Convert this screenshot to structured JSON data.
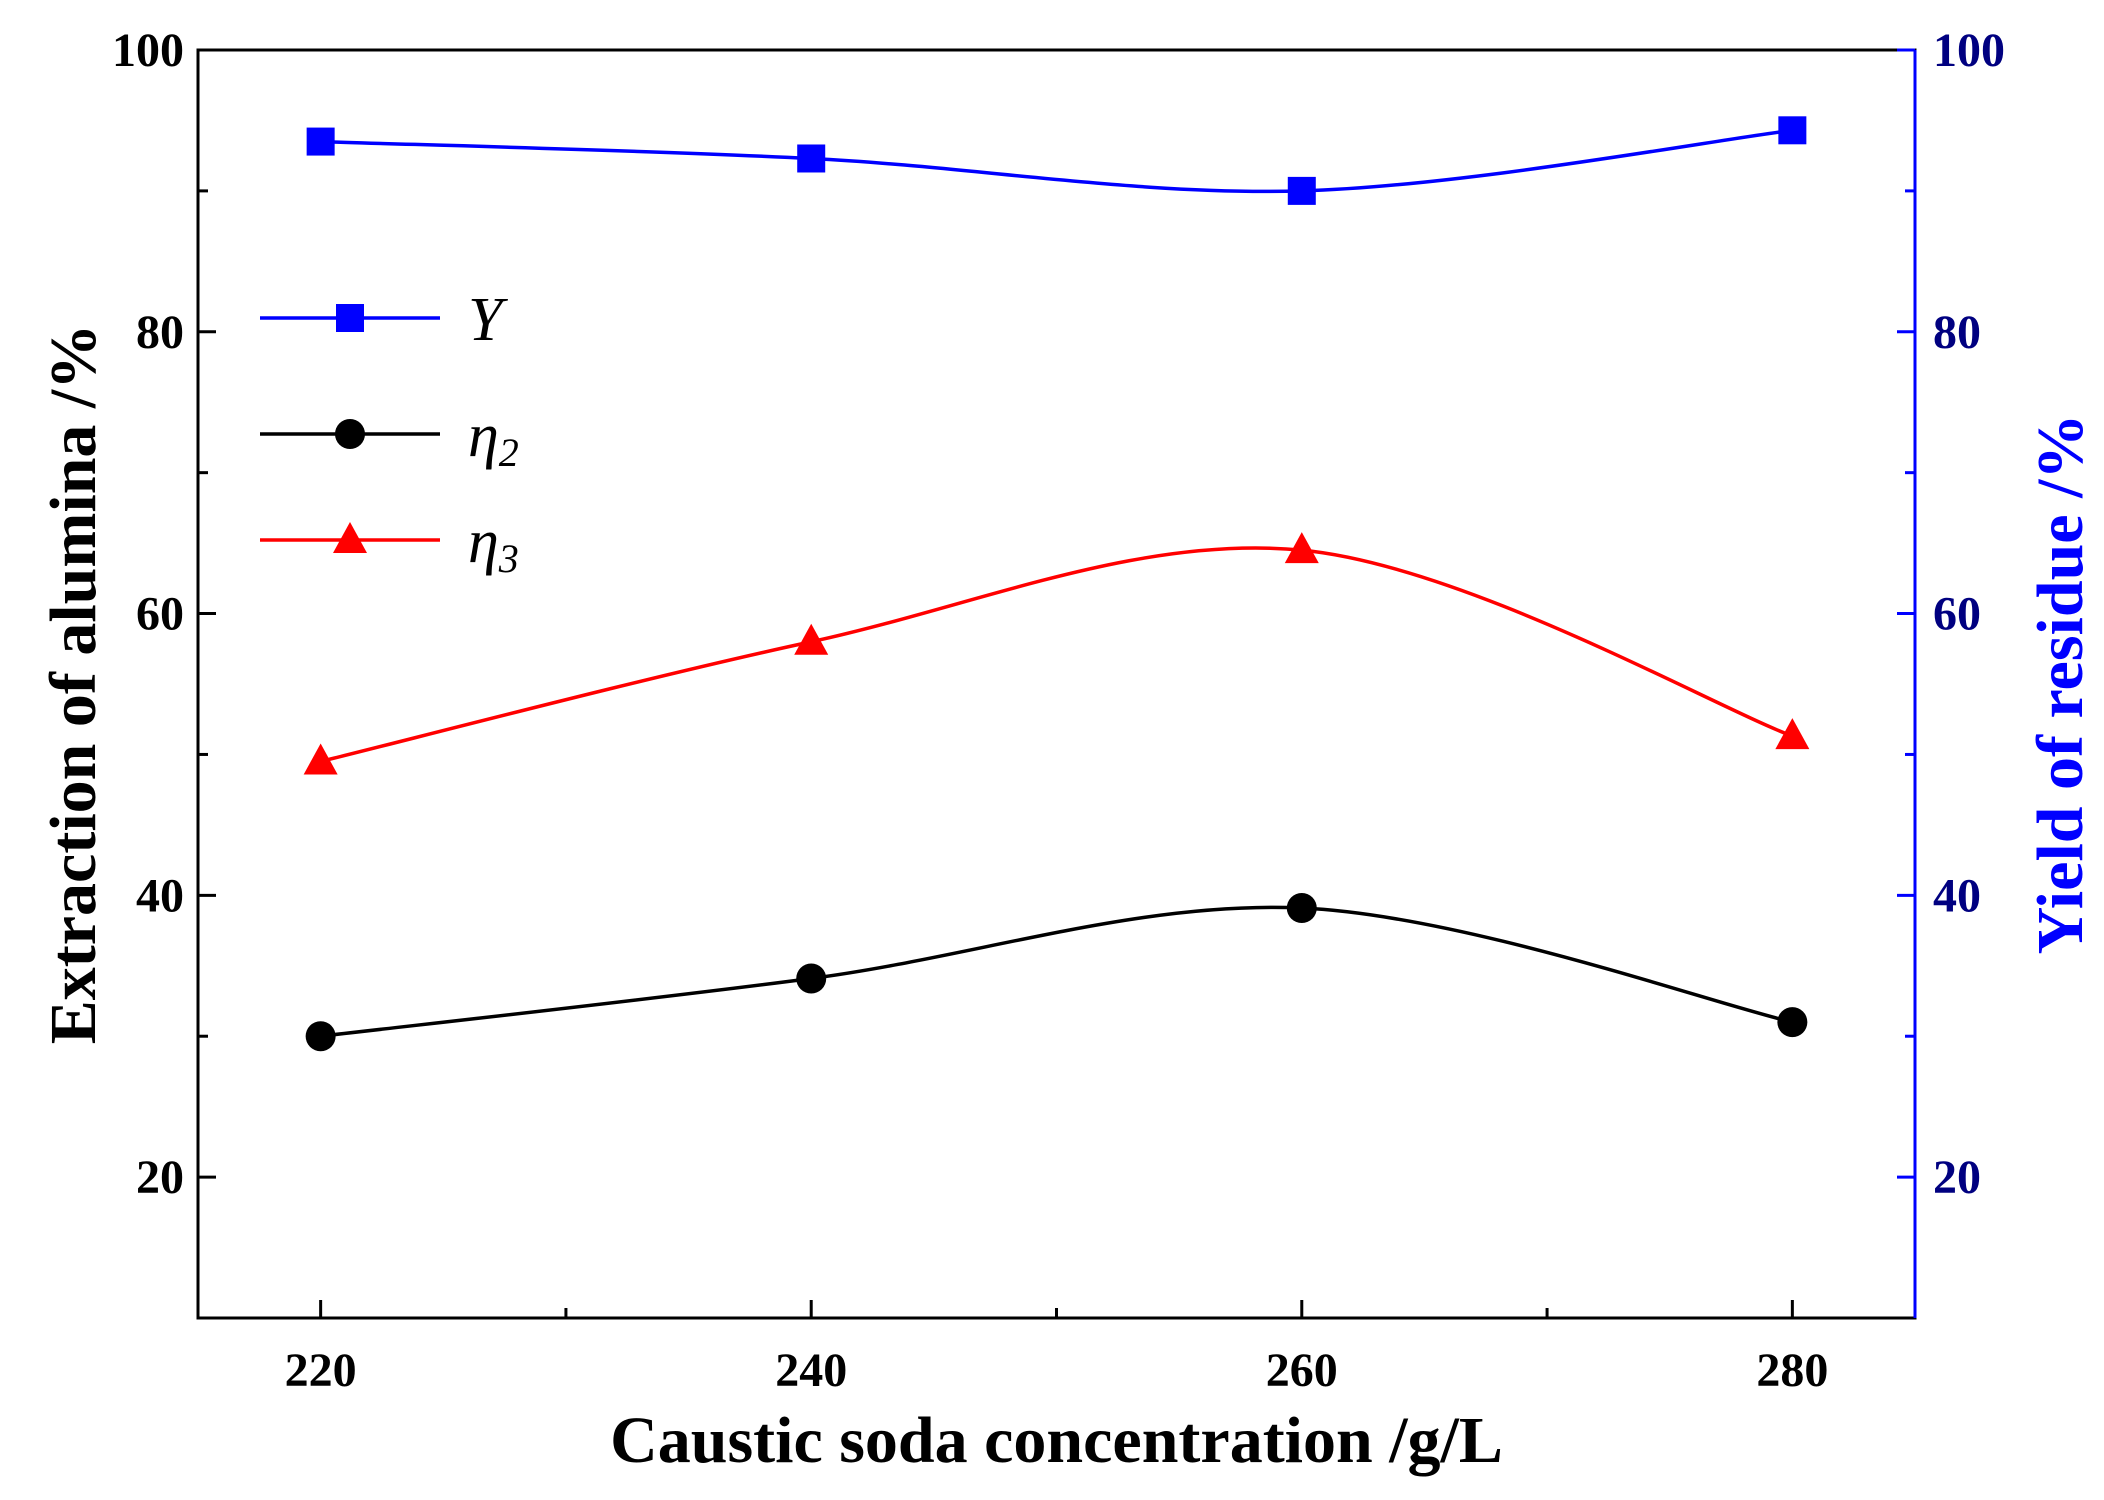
{
  "chart_data": {
    "type": "line",
    "xlabel": "Caustic soda concentration /g/L",
    "ylabel_left": "Extraction of alumina /%",
    "ylabel_right": "Yield of residue /%",
    "x": [
      220,
      240,
      260,
      280
    ],
    "x_ticks": [
      "220",
      "240",
      "260",
      "280"
    ],
    "xlim": [
      215,
      285
    ],
    "ylim_left": [
      10,
      100
    ],
    "ylim_right": [
      10,
      100
    ],
    "y_ticks_left": [
      "20",
      "40",
      "60",
      "80",
      "100"
    ],
    "y_ticks_right": [
      "20",
      "40",
      "60",
      "80",
      "100"
    ],
    "grid": false,
    "legend_position": "upper-left",
    "series": [
      {
        "name": "Y",
        "name_sub": "",
        "axis": "right",
        "marker": "square",
        "color": "#0000ff",
        "values": [
          93.5,
          92.3,
          90.0,
          94.3
        ]
      },
      {
        "name": "η",
        "name_sub": "2",
        "axis": "left",
        "marker": "circle",
        "color": "#000000",
        "values": [
          30.0,
          34.1,
          39.1,
          31.0
        ]
      },
      {
        "name": "η",
        "name_sub": "3",
        "axis": "left",
        "marker": "triangle",
        "color": "#ff0000",
        "values": [
          49.5,
          58.0,
          64.5,
          51.3
        ]
      }
    ],
    "colors": {
      "left_axis": "#000000",
      "right_axis": "#0000ff"
    }
  }
}
